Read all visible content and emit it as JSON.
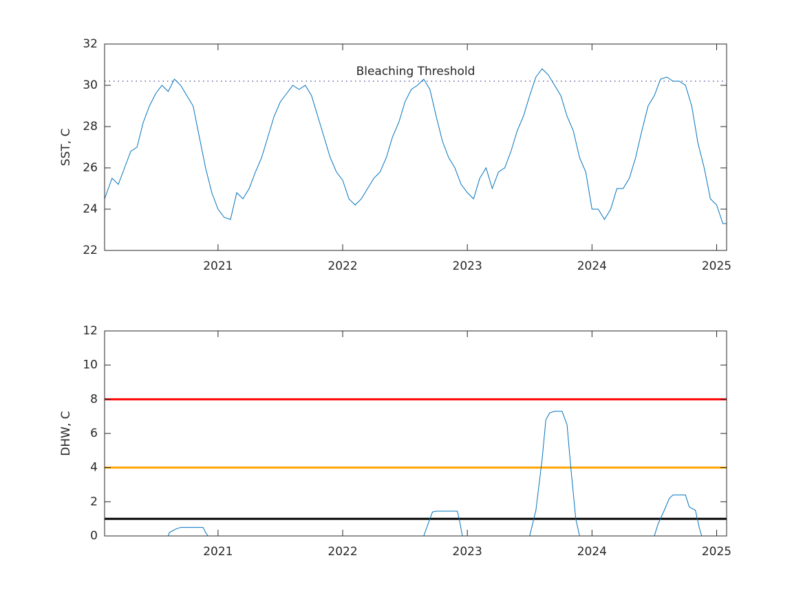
{
  "chart_data": [
    {
      "type": "line",
      "ylabel": "SST, C",
      "x": [
        2020.09,
        2020.15,
        2020.2,
        2020.25,
        2020.3,
        2020.35,
        2020.4,
        2020.45,
        2020.5,
        2020.55,
        2020.6,
        2020.65,
        2020.7,
        2020.75,
        2020.8,
        2020.85,
        2020.9,
        2020.95,
        2021.0,
        2021.05,
        2021.1,
        2021.15,
        2021.2,
        2021.25,
        2021.3,
        2021.35,
        2021.4,
        2021.45,
        2021.5,
        2021.55,
        2021.6,
        2021.65,
        2021.7,
        2021.75,
        2021.8,
        2021.85,
        2021.9,
        2021.95,
        2022.0,
        2022.05,
        2022.1,
        2022.15,
        2022.2,
        2022.25,
        2022.3,
        2022.35,
        2022.4,
        2022.45,
        2022.5,
        2022.55,
        2022.6,
        2022.65,
        2022.7,
        2022.75,
        2022.8,
        2022.85,
        2022.9,
        2022.95,
        2023.0,
        2023.05,
        2023.1,
        2023.15,
        2023.2,
        2023.25,
        2023.3,
        2023.35,
        2023.4,
        2023.45,
        2023.5,
        2023.55,
        2023.6,
        2023.65,
        2023.7,
        2023.75,
        2023.8,
        2023.85,
        2023.9,
        2023.95,
        2024.0,
        2024.05,
        2024.1,
        2024.15,
        2024.2,
        2024.25,
        2024.3,
        2024.35,
        2024.4,
        2024.45,
        2024.5,
        2024.55,
        2024.6,
        2024.65,
        2024.7,
        2024.75,
        2024.8,
        2024.85,
        2024.9,
        2024.95,
        2025.0,
        2025.05,
        2025.08
      ],
      "values": [
        24.5,
        25.5,
        25.2,
        26.0,
        26.8,
        27.0,
        28.2,
        29.0,
        29.6,
        30.0,
        29.7,
        30.3,
        30.0,
        29.5,
        29.0,
        27.5,
        26.0,
        24.8,
        24.0,
        23.6,
        23.5,
        24.8,
        24.5,
        25.0,
        25.8,
        26.5,
        27.5,
        28.5,
        29.2,
        29.6,
        30.0,
        29.8,
        30.0,
        29.5,
        28.5,
        27.5,
        26.5,
        25.8,
        25.4,
        24.5,
        24.2,
        24.5,
        25.0,
        25.5,
        25.8,
        26.5,
        27.5,
        28.2,
        29.2,
        29.8,
        30.0,
        30.3,
        29.8,
        28.5,
        27.3,
        26.5,
        26.0,
        25.2,
        24.8,
        24.5,
        25.5,
        26.0,
        25.0,
        25.8,
        26.0,
        26.8,
        27.8,
        28.5,
        29.5,
        30.4,
        30.8,
        30.5,
        30.0,
        29.5,
        28.5,
        27.8,
        26.5,
        25.8,
        24.0,
        24.0,
        23.5,
        24.0,
        25.0,
        25.0,
        25.5,
        26.5,
        27.8,
        29.0,
        29.5,
        30.3,
        30.4,
        30.2,
        30.2,
        30.0,
        29.0,
        27.2,
        26.0,
        24.5,
        24.2,
        23.3,
        23.3
      ],
      "color": "#0072bd",
      "reference_lines": [
        {
          "value": 30.2,
          "label": "Bleaching Threshold",
          "color": "#3b3b8f",
          "style": "dotted"
        }
      ],
      "xlim": [
        2020.09,
        2025.08
      ],
      "xticks": [
        2021,
        2022,
        2023,
        2024,
        2025
      ],
      "ylim": [
        22,
        32
      ],
      "yticks": [
        22,
        24,
        26,
        28,
        30,
        32
      ]
    },
    {
      "type": "line",
      "ylabel": "DHW, C",
      "x": [
        2020.09,
        2020.6,
        2020.61,
        2020.66,
        2020.7,
        2020.88,
        2020.9,
        2020.92,
        2022.65,
        2022.68,
        2022.72,
        2022.75,
        2022.92,
        2022.94,
        2022.96,
        2023.5,
        2023.55,
        2023.6,
        2023.63,
        2023.66,
        2023.7,
        2023.76,
        2023.8,
        2023.83,
        2023.87,
        2023.9,
        2024.5,
        2024.53,
        2024.58,
        2024.62,
        2024.65,
        2024.75,
        2024.78,
        2024.83,
        2024.86,
        2024.88,
        2025.08
      ],
      "values": [
        0,
        0,
        0.2,
        0.4,
        0.5,
        0.5,
        0.2,
        0,
        0,
        0.6,
        1.4,
        1.45,
        1.45,
        0.8,
        0,
        0,
        1.5,
        4.5,
        6.8,
        7.2,
        7.3,
        7.3,
        6.5,
        4.0,
        1.0,
        0,
        0,
        0.7,
        1.5,
        2.2,
        2.4,
        2.4,
        1.7,
        1.5,
        0.5,
        0,
        0
      ],
      "color": "#0072bd",
      "reference_lines": [
        {
          "value": 1,
          "color": "#000000",
          "style": "solid"
        },
        {
          "value": 4,
          "color": "#ffa500",
          "style": "solid"
        },
        {
          "value": 8,
          "color": "#ff0000",
          "style": "solid"
        }
      ],
      "xlim": [
        2020.09,
        2025.08
      ],
      "xticks": [
        2021,
        2022,
        2023,
        2024,
        2025
      ],
      "ylim": [
        0,
        12
      ],
      "yticks": [
        0,
        2,
        4,
        6,
        8,
        10,
        12
      ]
    }
  ]
}
